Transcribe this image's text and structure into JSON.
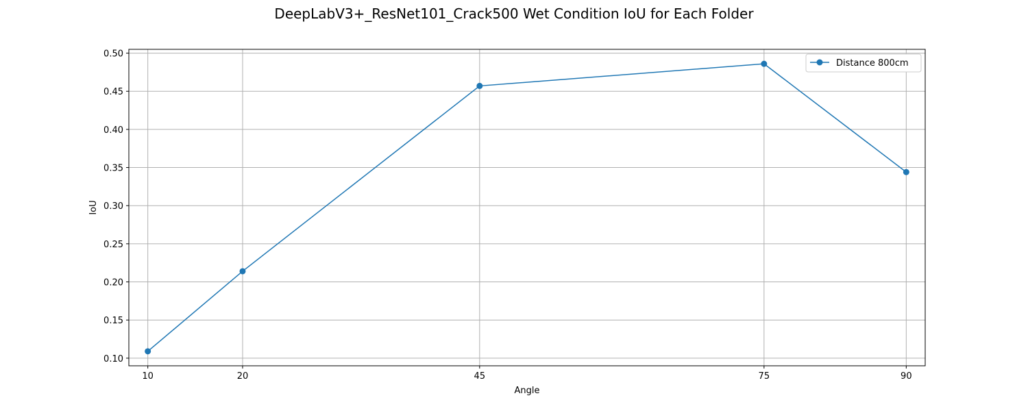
{
  "chart_data": {
    "type": "line",
    "title": "DeepLabV3+_ResNet101_Crack500 Wet Condition IoU for Each Folder",
    "xlabel": "Angle",
    "ylabel": "IoU",
    "x": [
      10,
      20,
      45,
      75,
      90
    ],
    "x_tick_labels": [
      "10",
      "20",
      "45",
      "75",
      "90"
    ],
    "xlim": [
      8,
      92
    ],
    "ylim": [
      0.09,
      0.505
    ],
    "y_ticks": [
      0.1,
      0.15,
      0.2,
      0.25,
      0.3,
      0.35,
      0.4,
      0.45,
      0.5
    ],
    "y_tick_labels": [
      "0.10",
      "0.15",
      "0.20",
      "0.25",
      "0.30",
      "0.35",
      "0.40",
      "0.45",
      "0.50"
    ],
    "grid": true,
    "legend_position": "top-right",
    "series": [
      {
        "name": "Distance 800cm",
        "color": "#1f77b4",
        "marker": "circle",
        "values": [
          0.109,
          0.214,
          0.457,
          0.486,
          0.344
        ]
      }
    ]
  }
}
